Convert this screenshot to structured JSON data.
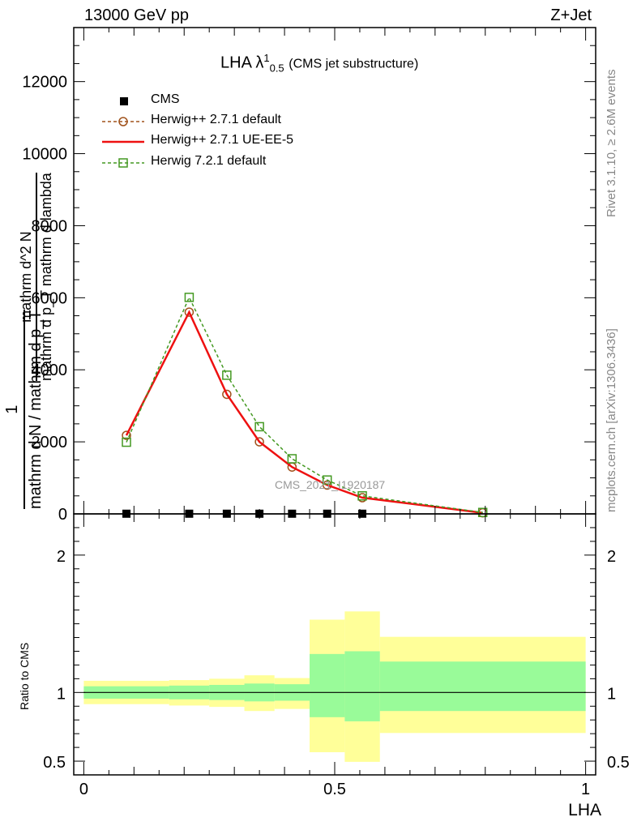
{
  "header": {
    "left": "13000 GeV pp",
    "right": "Z+Jet"
  },
  "side_text": {
    "rivet": "Rivet 3.1.10, ≥ 2.6M events",
    "mcplots": "mcplots.cern.ch [arXiv:1306.3436]"
  },
  "plot_title": {
    "main": "LHA λ",
    "sup": "1",
    "sub": "0.5",
    "extra": "(CMS jet substructure)"
  },
  "watermark": "CMS_2021_I1920187",
  "y_label_main": {
    "numerator": "1",
    "denominator": "mathrm d N / mathrm d p_T",
    "fraction2_numerator": "mathrm d^2 N",
    "fraction2_denominator": "mathrm d p_T mathrm d lambda"
  },
  "y_label_ratio": "Ratio to CMS",
  "x_label": "LHA",
  "legend": [
    {
      "key": "cms",
      "label": "CMS"
    },
    {
      "key": "herwigpp_default",
      "label": "Herwig++ 2.7.1 default"
    },
    {
      "key": "herwigpp_ueee5",
      "label": "Herwig++ 2.7.1 UE-EE-5"
    },
    {
      "key": "herwig7",
      "label": "Herwig 7.2.1 default"
    }
  ],
  "colors": {
    "herwigpp_default": "#a0521c",
    "herwigpp_ueee5": "#ee1111",
    "herwig7": "#449922",
    "band_inner": "#99fb99",
    "band_outer": "#ffff99"
  },
  "chart_data": [
    {
      "type": "line",
      "panel": "main",
      "xlim": [
        -0.02,
        1.02
      ],
      "ylim": [
        0,
        13500
      ],
      "y_ticks": [
        0,
        2000,
        4000,
        6000,
        8000,
        10000,
        12000
      ],
      "y_tick_labels": [
        "0",
        "2000",
        "4000",
        "6000",
        "8000",
        "10000",
        "12000"
      ],
      "series": [
        {
          "name": "CMS",
          "key": "cms",
          "x": [
            0.085,
            0.21,
            0.285,
            0.35,
            0.415,
            0.485,
            0.555
          ],
          "values": [
            5,
            5,
            5,
            5,
            5,
            5,
            5
          ]
        },
        {
          "name": "Herwig++ 2.7.1 default",
          "key": "herwigpp_default",
          "x": [
            0.085,
            0.21,
            0.285,
            0.35,
            0.415,
            0.485,
            0.555,
            0.795
          ],
          "values": [
            2180,
            5600,
            3320,
            2000,
            1300,
            800,
            450,
            30
          ]
        },
        {
          "name": "Herwig++ 2.7.1 UE-EE-5",
          "key": "herwigpp_ueee5",
          "x": [
            0.085,
            0.21,
            0.285,
            0.35,
            0.415,
            0.485,
            0.555,
            0.795
          ],
          "values": [
            2180,
            5600,
            3320,
            2000,
            1300,
            800,
            450,
            30
          ]
        },
        {
          "name": "Herwig 7.2.1 default",
          "key": "herwig7",
          "x": [
            0.085,
            0.21,
            0.285,
            0.35,
            0.415,
            0.485,
            0.555,
            0.795
          ],
          "values": [
            1990,
            6010,
            3850,
            2420,
            1530,
            940,
            500,
            40
          ]
        }
      ]
    },
    {
      "type": "area",
      "panel": "ratio",
      "xlim": [
        -0.02,
        1.02
      ],
      "ylim": [
        0.4,
        2.3
      ],
      "x_ticks": [
        0,
        0.5,
        1
      ],
      "x_tick_labels": [
        "0",
        "0.5",
        "1"
      ],
      "y_ticks": [
        0.5,
        1,
        2
      ],
      "y_tick_labels": [
        "0.5",
        "1",
        "2"
      ],
      "reference": 1,
      "bins": [
        {
          "lo": 0.0,
          "hi": 0.17,
          "inner": [
            0.955,
            1.045
          ],
          "outer": [
            0.915,
            1.085
          ]
        },
        {
          "lo": 0.17,
          "hi": 0.25,
          "inner": [
            0.95,
            1.05
          ],
          "outer": [
            0.905,
            1.09
          ]
        },
        {
          "lo": 0.25,
          "hi": 0.32,
          "inner": [
            0.945,
            1.055
          ],
          "outer": [
            0.895,
            1.1
          ]
        },
        {
          "lo": 0.32,
          "hi": 0.38,
          "inner": [
            0.935,
            1.065
          ],
          "outer": [
            0.865,
            1.125
          ]
        },
        {
          "lo": 0.38,
          "hi": 0.45,
          "inner": [
            0.94,
            1.06
          ],
          "outer": [
            0.88,
            1.105
          ]
        },
        {
          "lo": 0.45,
          "hi": 0.52,
          "inner": [
            0.82,
            1.28
          ],
          "outer": [
            0.565,
            1.53
          ]
        },
        {
          "lo": 0.52,
          "hi": 0.59,
          "inner": [
            0.79,
            1.3
          ],
          "outer": [
            0.495,
            1.59
          ]
        },
        {
          "lo": 0.59,
          "hi": 1.0,
          "inner": [
            0.865,
            1.225
          ],
          "outer": [
            0.705,
            1.405
          ]
        }
      ]
    }
  ]
}
